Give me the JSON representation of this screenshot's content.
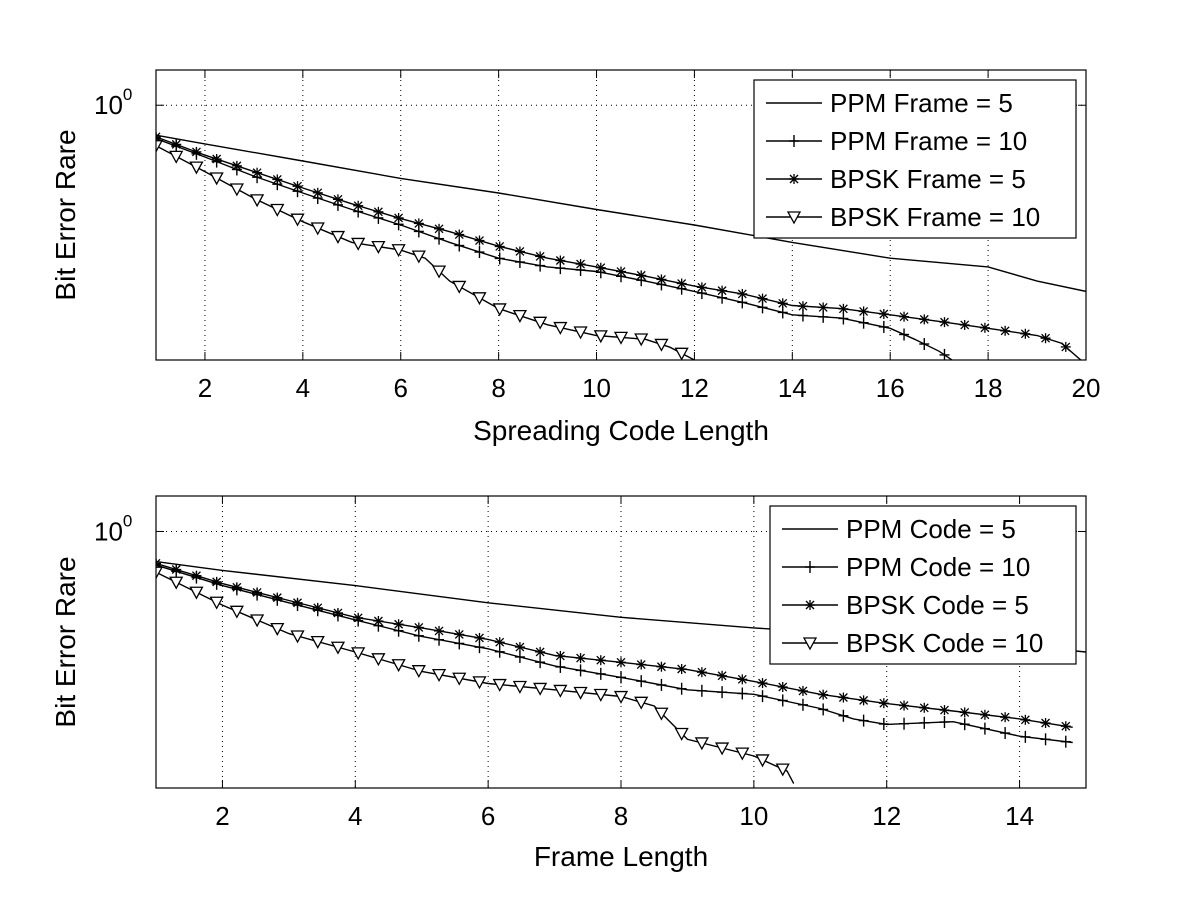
{
  "chart_data": [
    {
      "type": "line",
      "xlabel": "Spreading Code Length",
      "ylabel": "Bit Error Rare",
      "xlim": [
        1,
        20
      ],
      "xticks": [
        2,
        4,
        6,
        8,
        10,
        12,
        14,
        16,
        18,
        20
      ],
      "yscale": "log",
      "ylim": [
        0.15,
        1.3
      ],
      "ytick_base": "10",
      "ytick_exp": "0",
      "grid": true,
      "legend": "top-right",
      "series": [
        {
          "name": "PPM Frame = 5",
          "marker": "none",
          "x": [
            1,
            2,
            4,
            6,
            8,
            10,
            12,
            14,
            16,
            18,
            19,
            20
          ],
          "y": [
            0.8,
            0.75,
            0.66,
            0.58,
            0.52,
            0.46,
            0.41,
            0.36,
            0.32,
            0.3,
            0.27,
            0.25
          ]
        },
        {
          "name": "PPM Frame = 10",
          "marker": "plus",
          "x": [
            1,
            2,
            3,
            4,
            5,
            6,
            7,
            8,
            9,
            10,
            11,
            12,
            13,
            14,
            15,
            16,
            16.5,
            17,
            17.4
          ],
          "y": [
            0.78,
            0.68,
            0.59,
            0.52,
            0.46,
            0.41,
            0.36,
            0.32,
            0.3,
            0.29,
            0.27,
            0.25,
            0.23,
            0.21,
            0.205,
            0.19,
            0.175,
            0.16,
            0.145
          ]
        },
        {
          "name": "BPSK Frame = 5",
          "marker": "asterisk",
          "x": [
            1,
            2,
            3,
            4,
            5,
            6,
            7,
            8,
            9,
            10,
            11,
            12,
            13,
            14,
            15,
            16,
            17,
            18,
            19,
            19.5,
            20
          ],
          "y": [
            0.79,
            0.69,
            0.61,
            0.54,
            0.48,
            0.43,
            0.39,
            0.35,
            0.32,
            0.3,
            0.28,
            0.26,
            0.245,
            0.225,
            0.22,
            0.21,
            0.2,
            0.19,
            0.18,
            0.17,
            0.145
          ]
        },
        {
          "name": "BPSK Frame = 10",
          "marker": "triangle",
          "x": [
            1,
            2,
            3,
            4,
            5,
            6,
            6.5,
            7,
            8,
            9,
            10,
            11,
            11.5,
            12
          ],
          "y": [
            0.74,
            0.61,
            0.5,
            0.42,
            0.36,
            0.34,
            0.32,
            0.27,
            0.22,
            0.195,
            0.18,
            0.175,
            0.165,
            0.15
          ]
        }
      ]
    },
    {
      "type": "line",
      "xlabel": "Frame Length",
      "ylabel": "Bit Error Rare",
      "xlim": [
        1,
        15
      ],
      "xticks": [
        2,
        4,
        6,
        8,
        10,
        12,
        14
      ],
      "yscale": "log",
      "ylim": [
        0.15,
        1.3
      ],
      "ytick_base": "10",
      "ytick_exp": "0",
      "grid": true,
      "legend": "top-right",
      "series": [
        {
          "name": "PPM Code = 5",
          "marker": "none",
          "x": [
            1,
            2,
            4,
            6,
            8,
            10,
            12,
            14,
            15
          ],
          "y": [
            0.8,
            0.75,
            0.67,
            0.59,
            0.53,
            0.49,
            0.46,
            0.43,
            0.41
          ]
        },
        {
          "name": "PPM Code = 10",
          "marker": "plus",
          "x": [
            1,
            2,
            3,
            4,
            5,
            6,
            7,
            8,
            9,
            10,
            11,
            11.5,
            12,
            13,
            14,
            14.8
          ],
          "y": [
            0.78,
            0.67,
            0.59,
            0.52,
            0.46,
            0.42,
            0.37,
            0.34,
            0.31,
            0.3,
            0.27,
            0.25,
            0.24,
            0.245,
            0.22,
            0.21
          ]
        },
        {
          "name": "BPSK Code = 5",
          "marker": "asterisk",
          "x": [
            1,
            2,
            3,
            4,
            5,
            6,
            7,
            8,
            9,
            10,
            11,
            12,
            13,
            14,
            14.8
          ],
          "y": [
            0.79,
            0.68,
            0.6,
            0.53,
            0.49,
            0.45,
            0.4,
            0.38,
            0.36,
            0.33,
            0.3,
            0.28,
            0.265,
            0.25,
            0.235
          ]
        },
        {
          "name": "BPSK Code = 10",
          "marker": "triangle",
          "x": [
            1,
            2,
            3,
            4,
            5,
            6,
            7,
            8,
            8.5,
            9,
            10,
            10.5,
            10.6
          ],
          "y": [
            0.74,
            0.58,
            0.47,
            0.41,
            0.355,
            0.325,
            0.31,
            0.295,
            0.275,
            0.215,
            0.19,
            0.17,
            0.155
          ]
        }
      ]
    }
  ]
}
